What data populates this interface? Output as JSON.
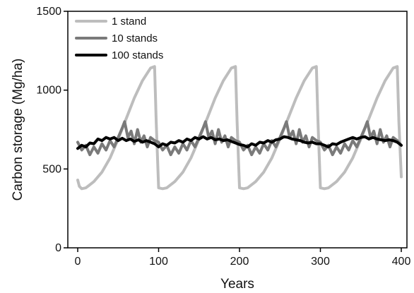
{
  "chart_data": {
    "type": "line",
    "xlabel": "Years",
    "ylabel": "Carbon storage (Mg/ha)",
    "xlim": [
      0,
      400
    ],
    "ylim": [
      0,
      1500
    ],
    "xticks": [
      0,
      100,
      200,
      300,
      400
    ],
    "yticks": [
      0,
      500,
      1000,
      1500
    ],
    "grid": false,
    "legend_position": "top-left",
    "series": [
      {
        "name": "1 stand",
        "color": "#bdbdbd",
        "x": [
          0,
          2,
          5,
          10,
          20,
          30,
          40,
          50,
          60,
          70,
          80,
          90,
          95,
          97,
          100,
          105,
          110,
          120,
          130,
          140,
          150,
          160,
          170,
          180,
          190,
          195,
          197,
          200,
          205,
          210,
          220,
          230,
          240,
          250,
          260,
          270,
          280,
          290,
          295,
          297,
          300,
          305,
          310,
          320,
          330,
          340,
          350,
          360,
          370,
          380,
          390,
          395,
          397,
          400
        ],
        "y": [
          430,
          390,
          375,
          380,
          420,
          480,
          570,
          690,
          820,
          950,
          1060,
          1140,
          1150,
          800,
          380,
          375,
          380,
          420,
          480,
          570,
          690,
          820,
          950,
          1060,
          1140,
          1150,
          800,
          380,
          375,
          380,
          420,
          480,
          570,
          690,
          820,
          950,
          1060,
          1140,
          1150,
          800,
          380,
          375,
          380,
          420,
          480,
          570,
          690,
          820,
          950,
          1060,
          1140,
          1150,
          800,
          450
        ]
      },
      {
        "name": "10 stands",
        "color": "#7a7a7a",
        "x": [
          0,
          5,
          10,
          15,
          20,
          25,
          30,
          35,
          40,
          45,
          50,
          55,
          58,
          62,
          66,
          70,
          74,
          78,
          82,
          86,
          90,
          95,
          100,
          105,
          110,
          115,
          120,
          125,
          130,
          135,
          140,
          145,
          150,
          155,
          158,
          162,
          166,
          170,
          174,
          178,
          182,
          186,
          190,
          195,
          200,
          205,
          210,
          215,
          220,
          225,
          230,
          235,
          240,
          245,
          250,
          255,
          258,
          262,
          266,
          270,
          274,
          278,
          282,
          286,
          290,
          295,
          300,
          305,
          310,
          315,
          320,
          325,
          330,
          335,
          340,
          345,
          350,
          355,
          358,
          362,
          366,
          370,
          374,
          378,
          382,
          386,
          390,
          395,
          400
        ],
        "y": [
          670,
          620,
          650,
          590,
          640,
          600,
          660,
          620,
          680,
          640,
          700,
          760,
          800,
          700,
          740,
          660,
          750,
          670,
          710,
          640,
          700,
          680,
          670,
          620,
          650,
          590,
          640,
          600,
          660,
          620,
          680,
          640,
          700,
          760,
          800,
          700,
          740,
          660,
          750,
          670,
          710,
          640,
          700,
          680,
          670,
          620,
          650,
          590,
          640,
          600,
          660,
          620,
          680,
          640,
          700,
          760,
          800,
          700,
          740,
          660,
          750,
          670,
          710,
          640,
          700,
          680,
          670,
          620,
          650,
          590,
          640,
          600,
          660,
          620,
          680,
          640,
          700,
          760,
          800,
          700,
          740,
          660,
          750,
          670,
          710,
          640,
          700,
          680,
          650
        ]
      },
      {
        "name": "100 stands",
        "color": "#000000",
        "x": [
          0,
          5,
          10,
          15,
          20,
          25,
          30,
          35,
          40,
          45,
          50,
          55,
          60,
          65,
          70,
          75,
          80,
          85,
          90,
          95,
          100,
          105,
          110,
          115,
          120,
          125,
          130,
          135,
          140,
          145,
          150,
          155,
          160,
          165,
          170,
          175,
          180,
          185,
          190,
          195,
          200,
          205,
          210,
          215,
          220,
          225,
          230,
          235,
          240,
          245,
          250,
          255,
          260,
          265,
          270,
          275,
          280,
          285,
          290,
          295,
          300,
          305,
          310,
          315,
          320,
          325,
          330,
          335,
          340,
          345,
          350,
          355,
          360,
          365,
          370,
          375,
          380,
          385,
          390,
          395,
          400
        ],
        "y": [
          630,
          650,
          640,
          665,
          660,
          690,
          680,
          700,
          690,
          700,
          680,
          695,
          680,
          690,
          675,
          685,
          670,
          680,
          670,
          660,
          640,
          660,
          650,
          670,
          665,
          680,
          670,
          690,
          680,
          700,
          690,
          705,
          690,
          700,
          685,
          690,
          680,
          685,
          675,
          665,
          655,
          650,
          640,
          660,
          650,
          670,
          665,
          680,
          670,
          685,
          690,
          705,
          700,
          690,
          685,
          680,
          670,
          665,
          670,
          660,
          660,
          650,
          640,
          660,
          655,
          670,
          680,
          690,
          700,
          690,
          700,
          705,
          690,
          700,
          690,
          685,
          680,
          685,
          680,
          670,
          650
        ]
      }
    ]
  }
}
